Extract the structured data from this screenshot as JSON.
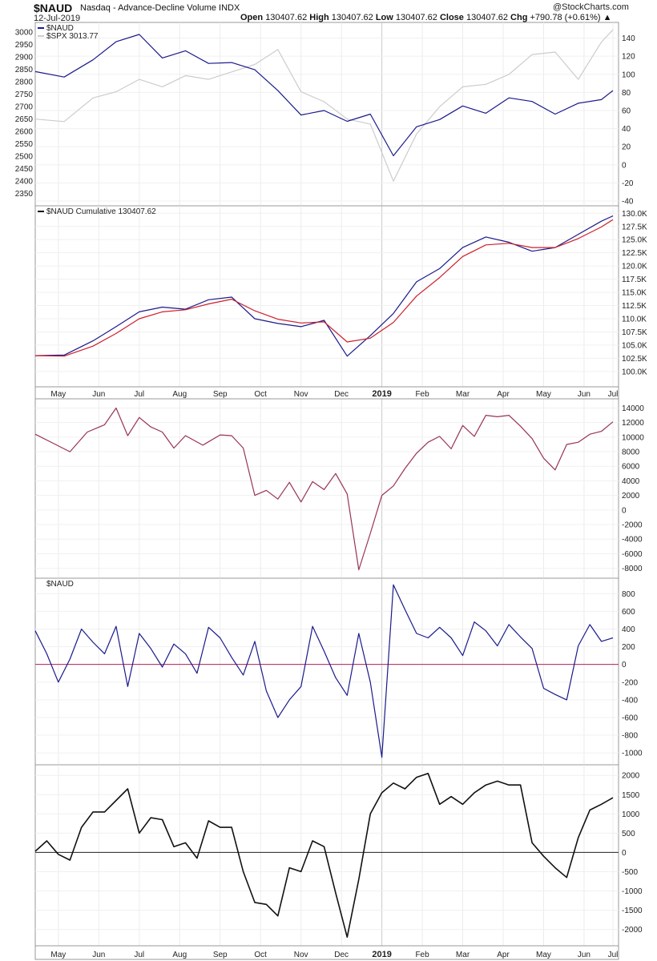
{
  "header": {
    "ticker": "$NAUD",
    "subtitle": "Nasdaq - Advance-Decline Volume",
    "exchange": "INDX",
    "date": "12-Jul-2019",
    "open_label": "Open",
    "open": "130407.62",
    "high_label": "High",
    "high": "130407.62",
    "low_label": "Low",
    "low": "130407.62",
    "close_label": "Close",
    "close": "130407.62",
    "chg_label": "Chg",
    "chg": "+790.78 (+0.61%)",
    "brand": "@StockCharts.com"
  },
  "chart_data": [
    {
      "type": "line",
      "panel": "price",
      "legend": [
        "$NAUD",
        "$SPX 3013.77"
      ],
      "left_axis_ticks": [
        3000,
        2950,
        2900,
        2850,
        2800,
        2750,
        2700,
        2650,
        2600,
        2550,
        2500,
        2450,
        2400,
        2350
      ],
      "right_axis_ticks": [
        140,
        120,
        100,
        80,
        60,
        40,
        20,
        0,
        -20,
        -40
      ],
      "left_ylim": [
        2320,
        3020
      ],
      "right_ylim": [
        -40,
        152
      ],
      "x": [
        0,
        5,
        10,
        14,
        18,
        22,
        26,
        30,
        34,
        38,
        42,
        46,
        50,
        54,
        58,
        62,
        66,
        70,
        74,
        78,
        82,
        86,
        90,
        94,
        98,
        100
      ],
      "series": [
        {
          "name": "$NAUD",
          "color": "#1a1a8c",
          "axis": "right",
          "values": [
            103,
            97,
            116,
            136,
            144,
            118,
            126,
            112,
            113,
            105,
            82,
            55,
            60,
            48,
            56,
            10,
            42,
            50,
            65,
            57,
            74,
            70,
            56,
            68,
            72,
            82
          ]
        },
        {
          "name": "$SPX 3013.77",
          "color": "#cccccc",
          "axis": "left",
          "values": [
            2650,
            2640,
            2735,
            2760,
            2810,
            2780,
            2825,
            2810,
            2840,
            2870,
            2930,
            2760,
            2720,
            2650,
            2630,
            2400,
            2590,
            2700,
            2780,
            2790,
            2830,
            2910,
            2920,
            2810,
            2960,
            3010
          ]
        }
      ]
    },
    {
      "type": "line",
      "panel": "cumulative",
      "legend": [
        "$NAUD Cumulative 130407.62"
      ],
      "right_axis_ticks": [
        "130.0K",
        "127.5K",
        "125.0K",
        "122.5K",
        "120.0K",
        "117.5K",
        "115.0K",
        "112.5K",
        "110.0K",
        "107.5K",
        "105.0K",
        "102.5K",
        "100.0K"
      ],
      "ylim": [
        98000,
        130500
      ],
      "x": [
        0,
        5,
        10,
        14,
        18,
        22,
        26,
        30,
        34,
        38,
        42,
        46,
        50,
        54,
        58,
        62,
        66,
        70,
        74,
        78,
        82,
        86,
        90,
        94,
        98,
        100
      ],
      "series": [
        {
          "name": "$NAUD Cumulative",
          "color": "#1a1a8c",
          "values": [
            103000,
            103100,
            105800,
            108500,
            111300,
            112200,
            111800,
            113600,
            114100,
            110000,
            109100,
            108500,
            109700,
            102900,
            106800,
            111000,
            117000,
            119500,
            123500,
            125500,
            124500,
            122800,
            123500,
            126000,
            128500,
            129500
          ]
        },
        {
          "name": "MA",
          "color": "#cc1f2a",
          "values": [
            103000,
            102900,
            104800,
            107200,
            110000,
            111300,
            111700,
            112800,
            113700,
            111500,
            109900,
            109200,
            109400,
            105600,
            106300,
            109300,
            114300,
            117800,
            121800,
            124000,
            124300,
            123500,
            123500,
            125200,
            127400,
            128800
          ]
        }
      ]
    },
    {
      "type": "line",
      "panel": "oscillator-1",
      "right_axis_ticks": [
        14000,
        12000,
        10000,
        8000,
        6000,
        4000,
        2000,
        0,
        -2000,
        -4000,
        -6000,
        -8000
      ],
      "ylim": [
        -8700,
        14600
      ],
      "x": [
        0,
        3,
        6,
        9,
        12,
        14,
        16,
        18,
        20,
        22,
        24,
        26,
        29,
        32,
        34,
        36,
        38,
        40,
        42,
        44,
        46,
        48,
        50,
        52,
        54,
        56,
        58,
        60,
        62,
        64,
        66,
        68,
        70,
        72,
        74,
        76,
        78,
        80,
        82,
        84,
        86,
        88,
        90,
        92,
        94,
        96,
        98,
        100
      ],
      "series": [
        {
          "name": "oscillator",
          "color": "#993355",
          "values": [
            10400,
            9200,
            8000,
            10700,
            11700,
            14000,
            10200,
            12700,
            11400,
            10700,
            8500,
            10200,
            8900,
            10300,
            10200,
            8500,
            2000,
            2700,
            1500,
            3800,
            1100,
            3900,
            2800,
            5000,
            2200,
            -8200,
            -3200,
            2000,
            3300,
            5700,
            7800,
            9300,
            10100,
            8400,
            11600,
            10100,
            13000,
            12800,
            13000,
            11500,
            9800,
            7100,
            5500,
            9000,
            9300,
            10400,
            10800,
            12100
          ]
        }
      ]
    },
    {
      "type": "line",
      "panel": "oscillator-2",
      "legend": [
        "$NAUD"
      ],
      "right_axis_ticks": [
        800,
        600,
        400,
        200,
        0,
        -200,
        -400,
        -600,
        -800,
        -1000
      ],
      "ylim": [
        -1080,
        920
      ],
      "zero_line_color": "#b0235a",
      "x": [
        0,
        2,
        4,
        6,
        8,
        10,
        12,
        14,
        16,
        18,
        20,
        22,
        24,
        26,
        28,
        30,
        32,
        34,
        36,
        38,
        40,
        42,
        44,
        46,
        48,
        50,
        52,
        54,
        56,
        58,
        60,
        62,
        64,
        66,
        68,
        70,
        72,
        74,
        76,
        78,
        80,
        82,
        84,
        86,
        88,
        90,
        92,
        94,
        96,
        98,
        100
      ],
      "series": [
        {
          "name": "$NAUD",
          "color": "#1a1a8c",
          "values": [
            380,
            120,
            -200,
            60,
            400,
            250,
            120,
            430,
            -250,
            350,
            180,
            -30,
            230,
            120,
            -100,
            420,
            300,
            80,
            -120,
            260,
            -300,
            -600,
            -400,
            -250,
            430,
            150,
            -150,
            -350,
            350,
            -200,
            -1050,
            900,
            620,
            350,
            300,
            420,
            300,
            100,
            480,
            380,
            210,
            450,
            310,
            180,
            -270,
            -340,
            -400,
            210,
            450,
            260,
            300
          ]
        }
      ]
    },
    {
      "type": "line",
      "panel": "oscillator-3",
      "right_axis_ticks": [
        2000,
        1500,
        1000,
        500,
        0,
        -500,
        -1000,
        -1500,
        -2000
      ],
      "ylim": [
        -2300,
        2150
      ],
      "zero_line_color": "#222222",
      "x": [
        0,
        2,
        4,
        6,
        8,
        10,
        12,
        14,
        16,
        18,
        20,
        22,
        24,
        26,
        28,
        30,
        32,
        34,
        36,
        38,
        40,
        42,
        44,
        46,
        48,
        50,
        52,
        54,
        56,
        58,
        60,
        62,
        64,
        66,
        68,
        70,
        72,
        74,
        76,
        78,
        80,
        82,
        84,
        86,
        88,
        90,
        92,
        94,
        96,
        98,
        100
      ],
      "series": [
        {
          "name": "oscillator",
          "color": "#111111",
          "values": [
            30,
            300,
            -50,
            -200,
            650,
            1050,
            1050,
            1350,
            1650,
            500,
            900,
            850,
            150,
            250,
            -150,
            820,
            650,
            650,
            -500,
            -1300,
            -1350,
            -1650,
            -400,
            -500,
            300,
            150,
            -1050,
            -2200,
            -700,
            1000,
            1550,
            1800,
            1650,
            1950,
            2050,
            1250,
            1450,
            1250,
            1550,
            1750,
            1850,
            1750,
            1750,
            250,
            -100,
            -400,
            -650,
            380,
            1100,
            1250,
            1420
          ]
        }
      ]
    }
  ],
  "time_axis": {
    "labels": [
      "May",
      "Jun",
      "Jul",
      "Aug",
      "Sep",
      "Oct",
      "Nov",
      "Dec",
      "2019",
      "Feb",
      "Mar",
      "Apr",
      "May",
      "Jun",
      "Jul"
    ],
    "label_positions": [
      4,
      11,
      18,
      25,
      32,
      39,
      46,
      53,
      60,
      67,
      74,
      81,
      88,
      95,
      100
    ],
    "bold_label": "2019"
  }
}
